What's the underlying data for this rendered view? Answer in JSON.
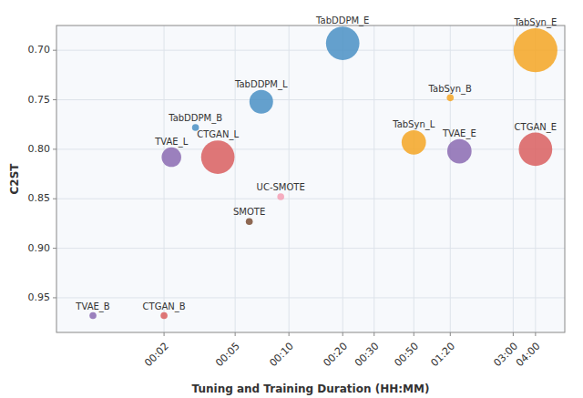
{
  "chart_data": {
    "type": "scatter",
    "xlabel": "Tuning and Training Duration (HH:MM)",
    "ylabel": "C2ST",
    "labels": [
      "TabDDPM_E",
      "TabDDPM_L",
      "TabDDPM_B",
      "TabSyn_E",
      "TabSyn_L",
      "TabSyn_B",
      "CTGAN_E",
      "CTGAN_L",
      "CTGAN_B",
      "TVAE_E",
      "TVAE_L",
      "TVAE_B",
      "SMOTE",
      "UC-SMOTE"
    ],
    "x": [
      20,
      7,
      3,
      240,
      50,
      80,
      240,
      4,
      2,
      90,
      2.2,
      0.8,
      6,
      9
    ],
    "values": [
      0.693,
      0.752,
      0.778,
      0.7,
      0.793,
      0.748,
      0.8,
      0.808,
      0.968,
      0.802,
      0.808,
      0.968,
      0.873,
      0.848
    ],
    "sizes": [
      700,
      350,
      30,
      1200,
      370,
      30,
      700,
      700,
      30,
      370,
      240,
      30,
      30,
      30
    ],
    "colors": [
      "#4a90c4",
      "#4a90c4",
      "#4a90c4",
      "#f5a623",
      "#f5a623",
      "#f5a623",
      "#d95f5f",
      "#d95f5f",
      "#d95f5f",
      "#8b6bb1",
      "#8b6bb1",
      "#8b6bb1",
      "#7b4f35",
      "#f4a0b5"
    ],
    "log": "x",
    "grid": true,
    "xlim": [
      0.5,
      350
    ],
    "xticks": [
      {
        "value": 2,
        "label": "00:02"
      },
      {
        "value": 5,
        "label": "00:05"
      },
      {
        "value": 10,
        "label": "00:10"
      },
      {
        "value": 20,
        "label": "00:20"
      },
      {
        "value": 30,
        "label": "00:30"
      },
      {
        "value": 50,
        "label": "00:50"
      },
      {
        "value": 80,
        "label": "01:20"
      },
      {
        "value": 180,
        "label": "03:00"
      },
      {
        "value": 240,
        "label": "04:00"
      }
    ],
    "ylim": [
      0.985,
      0.675
    ],
    "yticks": [
      {
        "value": 0.7,
        "label": "0.70"
      },
      0.75,
      {
        "value": 0.8,
        "label": "0.80"
      },
      0.85,
      {
        "value": 0.9,
        "label": "0.90"
      },
      0.95
    ]
  }
}
